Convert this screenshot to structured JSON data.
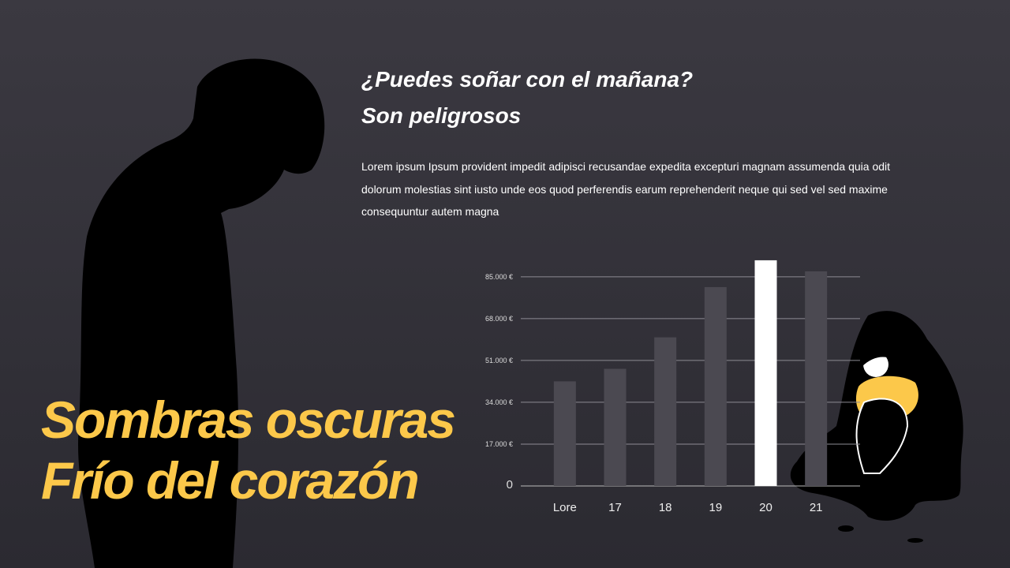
{
  "heading": [
    "¿Puedes soñar con el mañana?",
    "Son peligrosos"
  ],
  "body": [
    "Lorem ipsum Ipsum provident impedit adipisci recusandae expedita excepturi magnam assumenda quia odit",
    "dolorum molestias sint iusto unde eos quod perferendis earum reprehenderit neque qui sed vel sed maxime",
    "consequuntur autem magna"
  ],
  "big_title": [
    "Sombras oscuras",
    "Frío del corazón"
  ],
  "chart_data": {
    "type": "bar",
    "categories": [
      "Lore",
      "17",
      "18",
      "19",
      "20",
      "21"
    ],
    "values": [
      42500,
      47600,
      60400,
      80800,
      91700,
      87200
    ],
    "colors": [
      "#4b4951",
      "#4b4951",
      "#4b4951",
      "#4b4951",
      "#ffffff",
      "#4b4951"
    ],
    "ylim": [
      0,
      92000
    ],
    "yticks": [
      0,
      {
        "value": 17000,
        "label": "17.000 €"
      },
      {
        "value": 34000,
        "label": "34.000 €"
      },
      {
        "value": 51000,
        "label": "51.000 €"
      },
      {
        "value": 68000,
        "label": "68.000 €"
      },
      {
        "value": 85000,
        "label": "85.000 €"
      }
    ],
    "grid": true
  }
}
